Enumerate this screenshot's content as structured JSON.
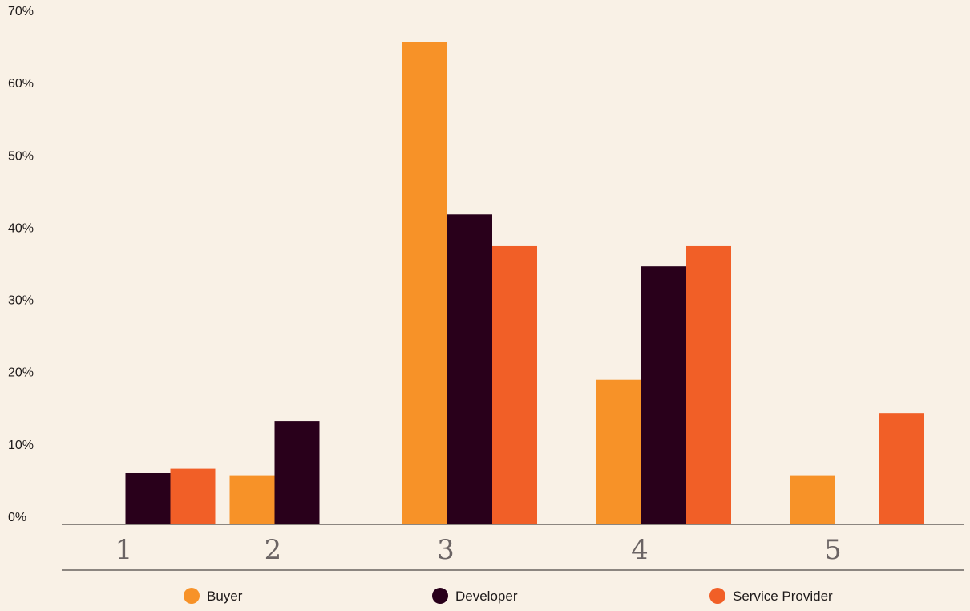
{
  "chart_data": {
    "type": "bar",
    "categories": [
      "1",
      "2",
      "3",
      "4",
      "5"
    ],
    "series": [
      {
        "name": "Buyer",
        "color": "#f79228",
        "values": [
          0,
          6.7,
          66.7,
          20,
          6.7
        ]
      },
      {
        "name": "Developer",
        "color": "#29001b",
        "values": [
          7.1,
          14.3,
          42.9,
          35.7,
          0
        ]
      },
      {
        "name": "Service Provider",
        "color": "#f15f27",
        "values": [
          7.7,
          0,
          38.5,
          38.5,
          15.4
        ]
      }
    ],
    "yticks": [
      "0%",
      "10%",
      "20%",
      "30%",
      "40%",
      "50%",
      "60%",
      "70%"
    ],
    "ylim": [
      0,
      70
    ],
    "title": "",
    "xlabel": "",
    "ylabel": "",
    "grid": false,
    "legend_position": "bottom"
  }
}
